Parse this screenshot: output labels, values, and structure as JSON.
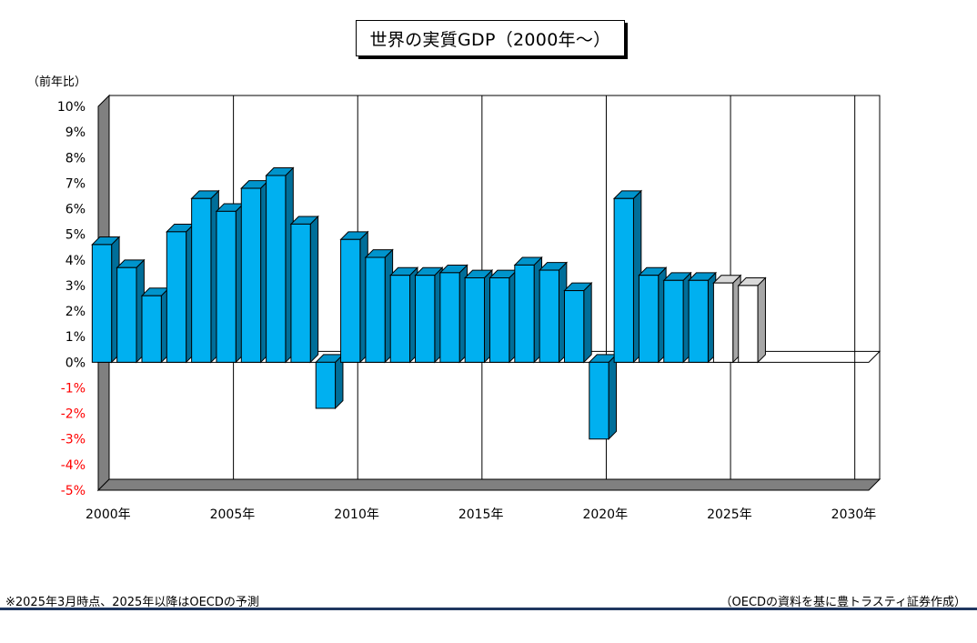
{
  "title": "世界の実質GDP（2000年～）",
  "ylabel": "（前年比）",
  "footnote_left": "※2025年3月時点、2025年以降はOECDの予測",
  "footnote_right": "（OECDの資料を基に豊トラスティ証券作成）",
  "colors": {
    "actual": "#00b0f0",
    "forecast": "#ffffff",
    "negative_tick": "#ff0000",
    "rule": "#1f3760"
  },
  "chart_data": {
    "type": "bar",
    "title": "世界の実質GDP（2000年～）",
    "ylabel": "（前年比）",
    "xlabel": "",
    "ylim": [
      -5,
      10
    ],
    "y_ticks": [
      "10%",
      "9%",
      "8%",
      "7%",
      "6%",
      "5%",
      "4%",
      "3%",
      "2%",
      "1%",
      "0%",
      "-1%",
      "-2%",
      "-3%",
      "-4%",
      "-5%"
    ],
    "x_tick_labels": [
      "2000年",
      "2005年",
      "2010年",
      "2015年",
      "2020年",
      "2025年",
      "2030年"
    ],
    "x_range": [
      2000,
      2031
    ],
    "grid": "vertical",
    "categories": [
      2000,
      2001,
      2002,
      2003,
      2004,
      2005,
      2006,
      2007,
      2008,
      2009,
      2010,
      2011,
      2012,
      2013,
      2014,
      2015,
      2016,
      2017,
      2018,
      2019,
      2020,
      2021,
      2022,
      2023,
      2024,
      2025,
      2026
    ],
    "values": [
      4.6,
      3.7,
      2.6,
      5.1,
      6.4,
      5.9,
      6.8,
      7.3,
      5.4,
      -1.8,
      4.8,
      4.1,
      3.4,
      3.4,
      3.5,
      3.3,
      3.3,
      3.8,
      3.6,
      2.8,
      -3.0,
      6.4,
      3.4,
      3.2,
      3.2,
      3.1,
      3.0
    ],
    "forecast_from": 2025
  }
}
